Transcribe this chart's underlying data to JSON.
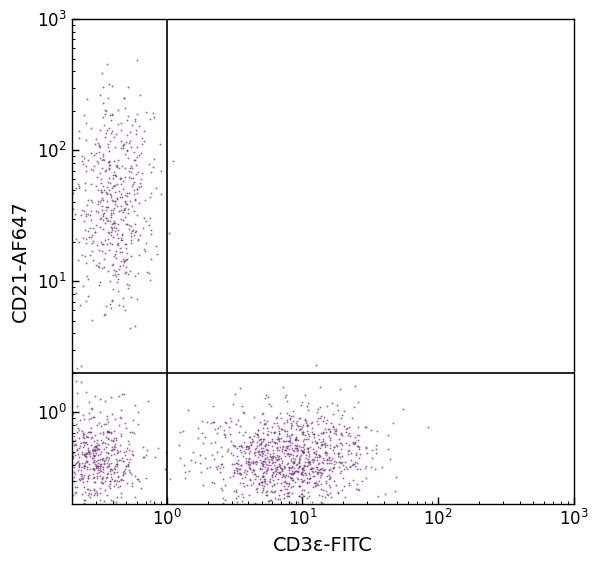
{
  "xlabel": "CD3ε-FITC",
  "ylabel": "CD21-AF647",
  "dot_color": "#7B2D8B",
  "dot_alpha": 0.75,
  "dot_size": 1.8,
  "xlim": [
    0.2,
    1000
  ],
  "ylim": [
    0.2,
    1000
  ],
  "gate_x": 1.0,
  "gate_y": 2.0,
  "background_color": "#ffffff",
  "cluster1_x_log_mean": -0.38,
  "cluster1_x_log_std": 0.15,
  "cluster1_y_log_mean": 1.6,
  "cluster1_y_log_std": 0.42,
  "cluster1_n": 500,
  "cluster2_x_log_mean": -0.55,
  "cluster2_x_log_std": 0.18,
  "cluster2_y_log_mean": -0.35,
  "cluster2_y_log_std": 0.2,
  "cluster2_n": 600,
  "cluster3_x_log_mean": 0.9,
  "cluster3_x_log_std": 0.3,
  "cluster3_y_log_mean": -0.35,
  "cluster3_y_log_std": 0.2,
  "cluster3_n": 1100,
  "seed": 7
}
